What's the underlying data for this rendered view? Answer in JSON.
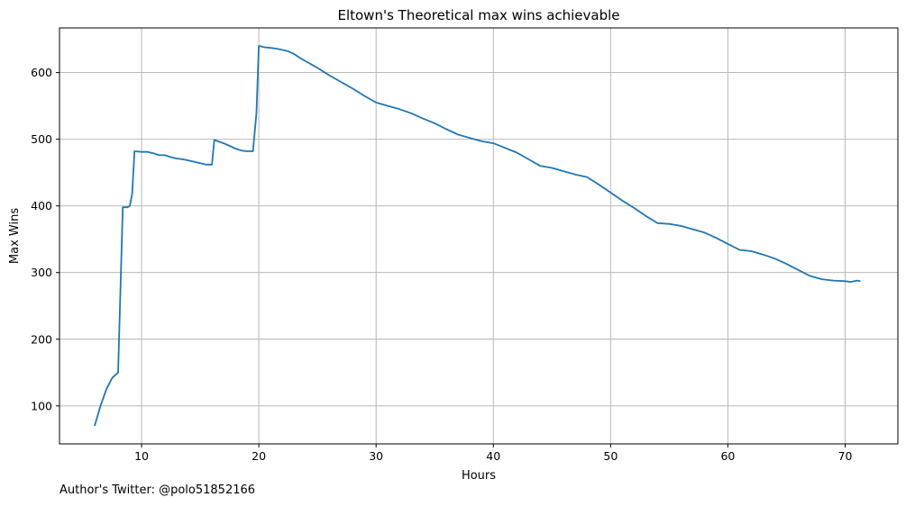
{
  "footer": {
    "author_note": "Author's Twitter: @polo51852166"
  },
  "chart_data": {
    "type": "line",
    "title": "Eltown's Theoretical max wins achievable",
    "xlabel": "Hours",
    "ylabel": "Max Wins",
    "xlim": [
      3,
      74.5
    ],
    "ylim": [
      43,
      667
    ],
    "xticks": [
      10,
      20,
      30,
      40,
      50,
      60,
      70
    ],
    "yticks": [
      100,
      200,
      300,
      400,
      500,
      600
    ],
    "grid": true,
    "series": [
      {
        "color": "#1f77b4",
        "x": [
          6.0,
          6.5,
          7.0,
          7.5,
          8.0,
          8.4,
          8.6,
          8.8,
          9.0,
          9.2,
          9.4,
          10.0,
          10.5,
          11.0,
          11.5,
          12.0,
          12.5,
          13.0,
          13.5,
          14.0,
          14.5,
          15.0,
          15.5,
          16.0,
          16.2,
          16.5,
          17.0,
          17.5,
          18.0,
          18.5,
          19.0,
          19.5,
          19.8,
          20.0,
          20.5,
          21.0,
          21.5,
          22.0,
          22.5,
          23.0,
          23.5,
          24.0,
          24.5,
          25.0,
          26.0,
          27.0,
          28.0,
          29.0,
          30.0,
          31.0,
          32.0,
          33.0,
          34.0,
          35.0,
          36.0,
          37.0,
          38.0,
          39.0,
          40.0,
          41.0,
          42.0,
          43.0,
          44.0,
          45.0,
          46.0,
          47.0,
          48.0,
          49.0,
          50.0,
          51.0,
          52.0,
          53.0,
          54.0,
          55.0,
          56.0,
          57.0,
          58.0,
          59.0,
          60.0,
          61.0,
          62.0,
          63.0,
          64.0,
          65.0,
          66.0,
          67.0,
          68.0,
          69.0,
          70.0,
          70.5,
          71.0,
          71.3
        ],
        "y": [
          70,
          100,
          125,
          142,
          150,
          398,
          398,
          398,
          400,
          418,
          482,
          481,
          481,
          479,
          476,
          476,
          473,
          471,
          470,
          468,
          466,
          464,
          462,
          462,
          499,
          497,
          494,
          490,
          486,
          483,
          482,
          482,
          540,
          640,
          638,
          637,
          636,
          634,
          632,
          628,
          622,
          617,
          612,
          607,
          596,
          586,
          576,
          565,
          555,
          550,
          545,
          539,
          531,
          524,
          515,
          507,
          502,
          497,
          494,
          487,
          480,
          470,
          460,
          457,
          452,
          447,
          443,
          432,
          420,
          408,
          397,
          385,
          374,
          373,
          370,
          365,
          360,
          352,
          343,
          334,
          332,
          327,
          321,
          313,
          304,
          295,
          290,
          288,
          287,
          286,
          288,
          287
        ]
      }
    ]
  }
}
